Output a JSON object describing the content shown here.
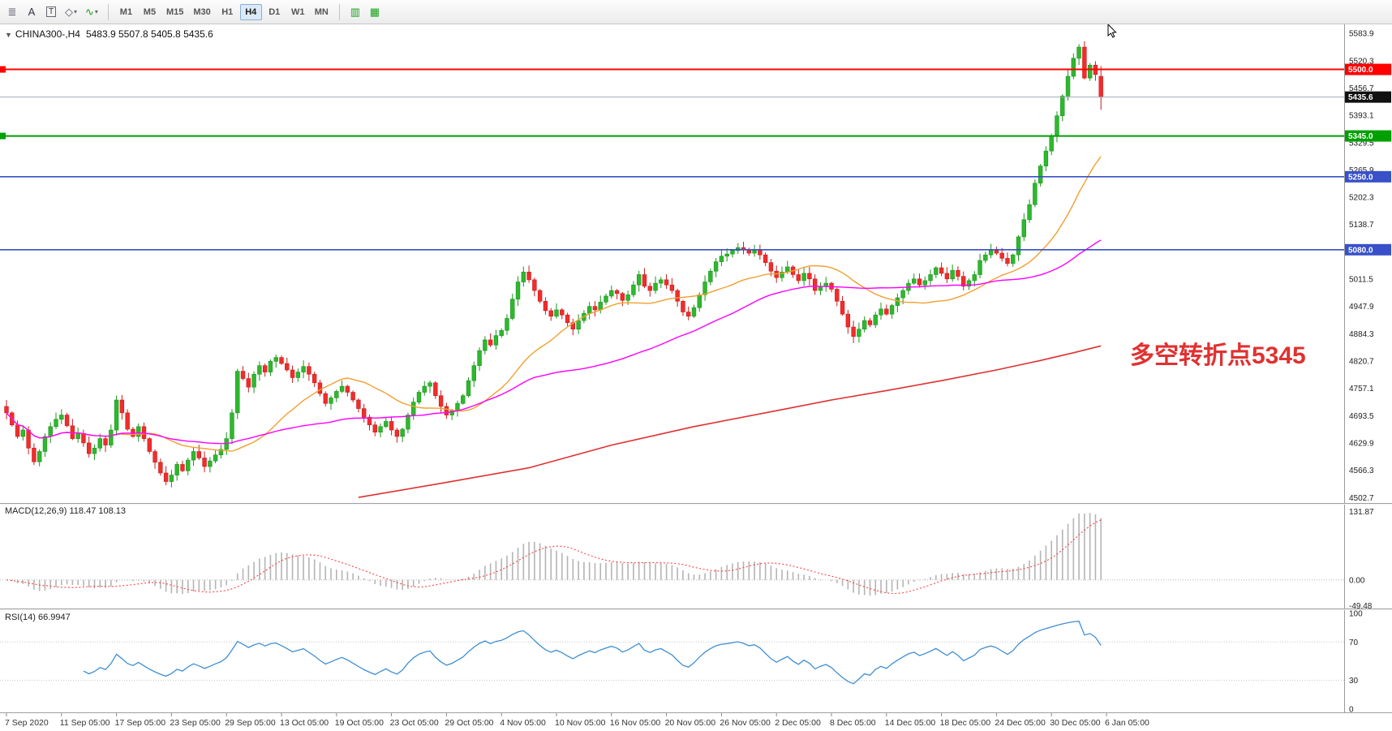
{
  "colors": {
    "up": "#2eb82e",
    "up_stroke": "#1d941d",
    "down": "#f22c2c",
    "down_stroke": "#c91d1d",
    "ma_fast": "#f0a030",
    "ma_mid": "#ff00ff",
    "ma_slow": "#e03030",
    "macd_hist": "#b4b4b4",
    "macd_signal": "#ff4040",
    "rsi_line": "#3f8fd2",
    "scale_text": "#222222",
    "axis_border": "#9a9a9a"
  },
  "toolbar": {
    "tools": [
      {
        "name": "chart-window-icon",
        "glyph": "≣",
        "color": "#556"
      },
      {
        "name": "text-annotation-icon",
        "glyph": "A",
        "color": "#334"
      },
      {
        "name": "text-label-icon",
        "glyph": "T",
        "color": "#334",
        "boxed": true
      },
      {
        "name": "shapes-tool-icon",
        "glyph": "◇",
        "color": "#556",
        "caret": true
      },
      {
        "name": "line-studies-icon",
        "glyph": "∿",
        "color": "#18a018",
        "caret": true
      }
    ],
    "timeframes": [
      "M1",
      "M5",
      "M15",
      "M30",
      "H1",
      "H4",
      "D1",
      "W1",
      "MN"
    ],
    "active_timeframe": "H4",
    "right_tools": [
      {
        "name": "bar-chart-type-icon",
        "glyph": "▥",
        "color": "#18a018"
      },
      {
        "name": "candles-chart-type-icon",
        "glyph": "▦",
        "color": "#18a018"
      }
    ]
  },
  "chart": {
    "collapse_glyph": "▼",
    "title_symbol": "CHINA300-,H4",
    "title_ohlc": "5483.9 5507.8 5405.8 5435.6"
  },
  "chart_data": {
    "type": "candlestick",
    "symbol": "CHINA300-",
    "timeframe": "H4",
    "current_bar": {
      "open": 5483.9,
      "high": 5507.8,
      "low": 5405.8,
      "close": 5435.6
    },
    "closes": [
      4700,
      4672,
      4645,
      4660,
      4618,
      4586,
      4610,
      4645,
      4668,
      4685,
      4695,
      4670,
      4640,
      4652,
      4630,
      4605,
      4618,
      4640,
      4625,
      4660,
      4730,
      4700,
      4662,
      4645,
      4668,
      4640,
      4610,
      4585,
      4560,
      4540,
      4555,
      4580,
      4565,
      4590,
      4610,
      4595,
      4575,
      4588,
      4602,
      4615,
      4640,
      4700,
      4797,
      4780,
      4760,
      4790,
      4810,
      4795,
      4820,
      4829,
      4815,
      4800,
      4782,
      4795,
      4808,
      4790,
      4770,
      4745,
      4722,
      4735,
      4750,
      4762,
      4748,
      4730,
      4710,
      4690,
      4672,
      4655,
      4668,
      4680,
      4660,
      4645,
      4662,
      4695,
      4725,
      4748,
      4762,
      4770,
      4740,
      4715,
      4695,
      4705,
      4722,
      4740,
      4775,
      4810,
      4845,
      4870,
      4858,
      4880,
      4892,
      4920,
      4965,
      5005,
      5028,
      5010,
      4985,
      4960,
      4938,
      4925,
      4940,
      4928,
      4910,
      4895,
      4915,
      4932,
      4948,
      4940,
      4958,
      4972,
      4985,
      4978,
      4962,
      4975,
      4998,
      5022,
      4995,
      4985,
      5002,
      5010,
      4998,
      4985,
      4960,
      4935,
      4925,
      4945,
      4975,
      5005,
      5030,
      5052,
      5065,
      5070,
      5078,
      5085,
      5080,
      5072,
      5078,
      5068,
      5050,
      5030,
      5015,
      5028,
      5040,
      5022,
      5008,
      5025,
      5012,
      4985,
      4995,
      5002,
      4988,
      4960,
      4930,
      4900,
      4878,
      4895,
      4915,
      4905,
      4928,
      4942,
      4930,
      4950,
      4968,
      4985,
      5002,
      5012,
      4998,
      5008,
      5022,
      5038,
      5025,
      5012,
      5032,
      5018,
      4995,
      5008,
      5022,
      5055,
      5068,
      5078,
      5072,
      5060,
      5048,
      5068,
      5110,
      5150,
      5185,
      5235,
      5275,
      5310,
      5345,
      5392,
      5438,
      5484,
      5526,
      5552,
      5480,
      5510,
      5488,
      5435.6
    ],
    "y_axis": {
      "range": [
        4490,
        5605
      ],
      "ticks": [
        5583.9,
        5520.3,
        5456.7,
        5393.1,
        5329.5,
        5265.9,
        5202.3,
        5138.7,
        5075.1,
        5011.5,
        4947.9,
        4884.3,
        4820.7,
        4757.1,
        4693.5,
        4629.9,
        4566.3,
        4502.7
      ]
    },
    "hlines": [
      {
        "price": 5500.0,
        "label": "5500.0",
        "color": "#ff0000",
        "width": 2,
        "left_marker": true
      },
      {
        "price": 5345.0,
        "label": "5345.0",
        "color": "#00a000",
        "width": 2,
        "left_marker": true
      },
      {
        "price": 5250.0,
        "label": "5250.0",
        "color": "#3850c8",
        "width": 1.6,
        "left_marker": false
      },
      {
        "price": 5080.0,
        "label": "5080.0",
        "color": "#3850c8",
        "width": 1.6,
        "left_marker": false
      }
    ],
    "current_price": {
      "price": 5435.6,
      "label": "5435.6",
      "box_color": "#111111",
      "line_color": "#a0a8b8"
    },
    "moving_averages": {
      "fast": {
        "type": "sma",
        "period": 21,
        "color": "#f0a030"
      },
      "medium": {
        "type": "sma",
        "period": 55,
        "color": "#ff00ff"
      },
      "slow": {
        "type": "polyline",
        "color": "#e03030",
        "points": [
          [
            64,
            4503
          ],
          [
            80,
            4538
          ],
          [
            95,
            4572
          ],
          [
            110,
            4625
          ],
          [
            125,
            4668
          ],
          [
            140,
            4705
          ],
          [
            150,
            4730
          ],
          [
            160,
            4752
          ],
          [
            170,
            4775
          ],
          [
            180,
            4800
          ],
          [
            188,
            4822
          ],
          [
            194,
            4840
          ],
          [
            199,
            4856
          ]
        ]
      }
    },
    "annotation": {
      "text": "多空转折点5345",
      "color": "#e03131"
    },
    "time_labels": [
      "7 Sep 2020",
      "11 Sep 05:00",
      "17 Sep 05:00",
      "23 Sep 05:00",
      "29 Sep 05:00",
      "13 Oct 05:00",
      "19 Oct 05:00",
      "23 Oct 05:00",
      "29 Oct 05:00",
      "4 Nov 05:00",
      "10 Nov 05:00",
      "16 Nov 05:00",
      "20 Nov 05:00",
      "26 Nov 05:00",
      "2 Dec 05:00",
      "8 Dec 05:00",
      "14 Dec 05:00",
      "18 Dec 05:00",
      "24 Dec 05:00",
      "30 Dec 05:00",
      "6 Jan 05:00"
    ],
    "indicators": {
      "macd": {
        "label": "MACD(12,26,9)",
        "values_text": "118.47 108.13",
        "fast": 12,
        "slow": 26,
        "signal": 9,
        "value": 118.47,
        "signal_value": 108.13,
        "axis_labels": [
          "131.87",
          "0.00",
          "-49.48"
        ],
        "axis_values": [
          131.87,
          0,
          -49.48
        ],
        "range": [
          -55,
          145
        ]
      },
      "rsi": {
        "label": "RSI(14)",
        "value_text": "66.9947",
        "period": 14,
        "value": 66.9947,
        "axis_labels": [
          "100",
          "70",
          "30",
          "0"
        ],
        "axis_values": [
          100,
          70,
          30,
          0
        ],
        "levels": [
          70,
          30
        ],
        "range": [
          0,
          100
        ]
      }
    }
  }
}
